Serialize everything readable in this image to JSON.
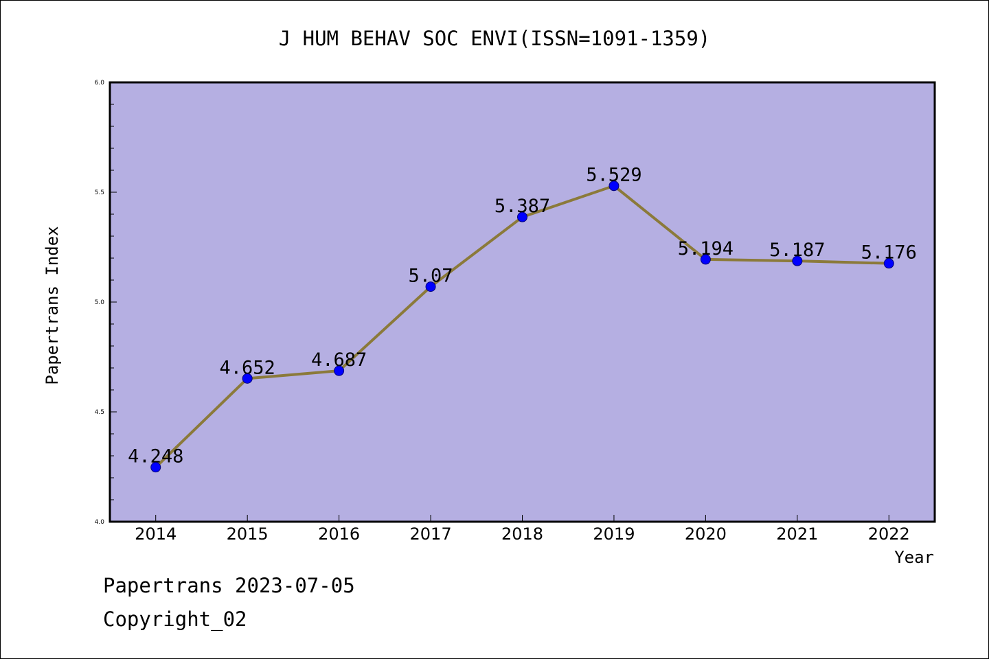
{
  "chart_data": {
    "type": "line",
    "title": "J HUM BEHAV SOC ENVI(ISSN=1091-1359)",
    "xlabel": "Year",
    "ylabel": "Papertrans Index",
    "categories": [
      "2014",
      "2015",
      "2016",
      "2017",
      "2018",
      "2019",
      "2020",
      "2021",
      "2022"
    ],
    "values": [
      4.248,
      4.652,
      4.687,
      5.07,
      5.387,
      5.529,
      5.194,
      5.187,
      5.176
    ],
    "data_labels": [
      "4.248",
      "4.652",
      "4.687",
      "5.07",
      "5.387",
      "5.529",
      "5.194",
      "5.187",
      "5.176"
    ],
    "ylim": [
      4.0,
      6.0
    ],
    "yticks": [
      "4.0",
      "4.5",
      "5.0",
      "5.5",
      "6.0"
    ],
    "grid": false,
    "colors": {
      "plot_background": "#b5afe2",
      "line": "#8b7a3a",
      "marker": "#0000ff"
    }
  },
  "footer": {
    "date_line": "Papertrans 2023-07-05",
    "copyright": "Copyright_02"
  }
}
